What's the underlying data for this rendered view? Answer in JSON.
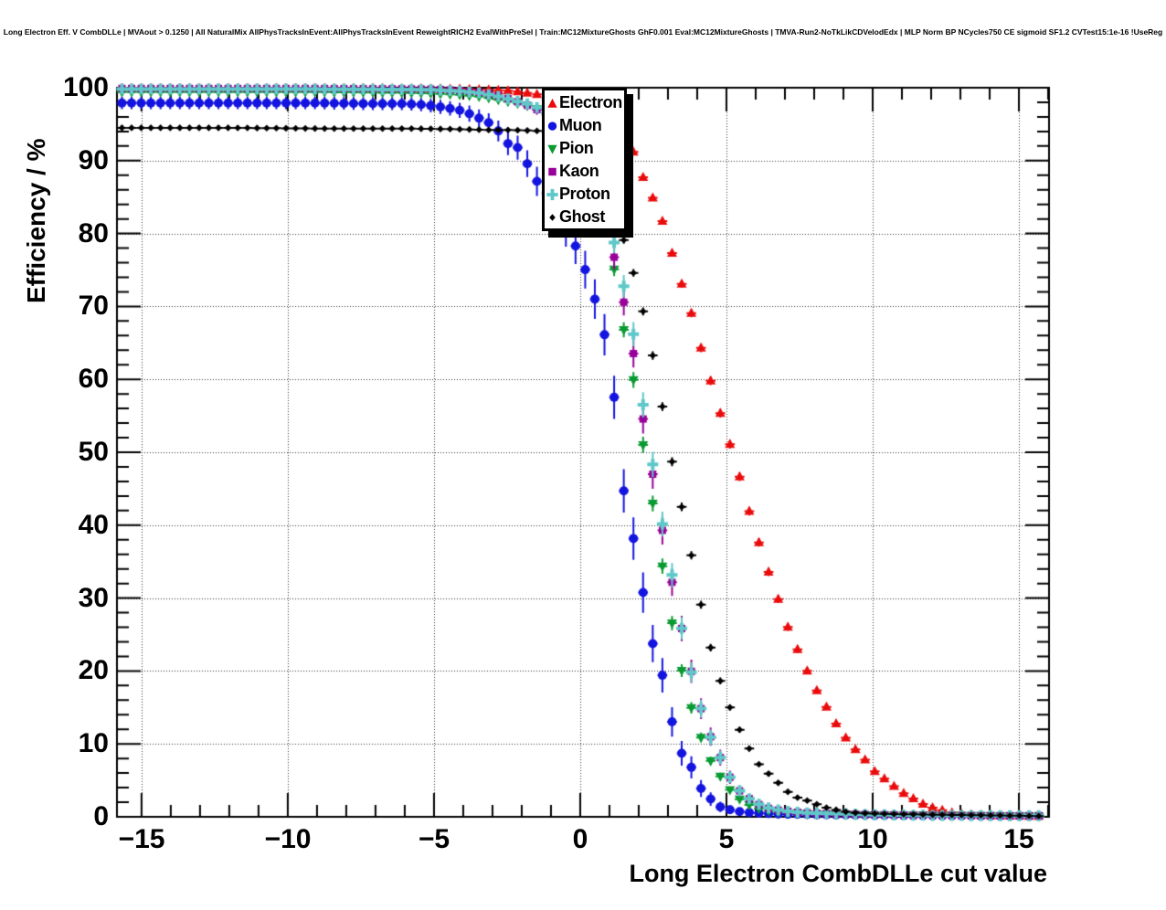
{
  "chart_data": {
    "type": "scatter",
    "title": "Long Electron Eff. V CombDLLe | MVAout > 0.1250 | All NaturalMix AllPhysTracksInEvent:AllPhysTracksInEvent ReweightRICH2 EvalWithPreSel | Train:MC12MixtureGhosts GhF0.001 Eval:MC12MixtureGhosts | TMVA-Run2-NoTkLikCDVelodEdx | MLP Norm BP NCycles750 CE sigmoid SF1.2 CVTest15:1e-16 !UseReg",
    "xlabel": "Long Electron CombDLLe cut value",
    "ylabel": "Efficiency / %",
    "xlim": [
      -15.84,
      16.03
    ],
    "ylim": [
      0,
      100
    ],
    "grid": "dotted-major-both-axes",
    "legend_position": "top-inside",
    "x_ticks": [
      -15,
      -10,
      -5,
      0,
      5,
      10,
      15
    ],
    "x_tick_labels": [
      "−15",
      "−10",
      "−5",
      "0",
      "5",
      "10",
      "15"
    ],
    "x_minor_step": 1,
    "y_ticks": [
      0,
      10,
      20,
      30,
      40,
      50,
      60,
      70,
      80,
      90,
      100
    ],
    "y_tick_labels": [
      "0",
      "10",
      "20",
      "30",
      "40",
      "50",
      "60",
      "70",
      "80",
      "90",
      "100"
    ],
    "y_minor_step": 2,
    "marker_bin_width": 0.33,
    "x_error_halfwidth": 0.166,
    "series": [
      {
        "name": "Electron",
        "marker": "triangle-up",
        "color": "#ea0c0c",
        "err_scale": 0.12,
        "points": [
          [
            -15.7,
            99.9
          ],
          [
            -12,
            99.9
          ],
          [
            -9,
            99.9
          ],
          [
            -7,
            99.9
          ],
          [
            -5,
            99.85
          ],
          [
            -4,
            99.8
          ],
          [
            -3,
            99.7
          ],
          [
            -2.5,
            99.6
          ],
          [
            -2,
            99.4
          ],
          [
            -1.5,
            99.1
          ],
          [
            -1,
            98.7
          ],
          [
            -0.5,
            98.1
          ],
          [
            0,
            97.3
          ],
          [
            0.5,
            96.3
          ],
          [
            1,
            95.0
          ],
          [
            1.35,
            93.9
          ],
          [
            1.68,
            92.7
          ],
          [
            2.13,
            87.9
          ],
          [
            2.46,
            85.1
          ],
          [
            2.78,
            82.1
          ],
          [
            3.08,
            78.1
          ],
          [
            3.4,
            73.9
          ],
          [
            3.75,
            69.8
          ],
          [
            4.05,
            65.4
          ],
          [
            4.38,
            60.9
          ],
          [
            4.7,
            56.5
          ],
          [
            5.05,
            52.0
          ],
          [
            5.38,
            47.7
          ],
          [
            5.68,
            43.2
          ],
          [
            6.0,
            39.1
          ],
          [
            6.3,
            35.1
          ],
          [
            6.63,
            31.5
          ],
          [
            6.93,
            28.0
          ],
          [
            7.19,
            25.0
          ],
          [
            7.57,
            21.8
          ],
          [
            7.87,
            19.0
          ],
          [
            8.2,
            16.5
          ],
          [
            8.51,
            14.5
          ],
          [
            8.82,
            12.3
          ],
          [
            9.14,
            10.5
          ],
          [
            9.48,
            8.9
          ],
          [
            9.82,
            7.5
          ],
          [
            10.1,
            6.1
          ],
          [
            10.45,
            5.1
          ],
          [
            10.76,
            4.1
          ],
          [
            11.07,
            3.2
          ],
          [
            11.4,
            2.5
          ],
          [
            11.7,
            1.8
          ],
          [
            12.0,
            1.3
          ],
          [
            12.3,
            1.0
          ],
          [
            12.66,
            0.6
          ],
          [
            12.97,
            0.4
          ],
          [
            13.3,
            0.3
          ],
          [
            13.9,
            0.2
          ],
          [
            14.5,
            0.15
          ],
          [
            15.2,
            0.1
          ],
          [
            15.8,
            0.1
          ]
        ]
      },
      {
        "name": "Muon",
        "marker": "circle",
        "color": "#1414e0",
        "err_scale": 0.6,
        "points": [
          [
            -15.7,
            97.9
          ],
          [
            -12,
            97.9
          ],
          [
            -9,
            97.9
          ],
          [
            -7,
            97.8
          ],
          [
            -6,
            97.8
          ],
          [
            -5.5,
            97.7
          ],
          [
            -5,
            97.5
          ],
          [
            -4.5,
            97.2
          ],
          [
            -4,
            96.8
          ],
          [
            -3.6,
            96.1
          ],
          [
            -3.3,
            95.5
          ],
          [
            -2.9,
            94.8
          ],
          [
            -2.6,
            92.6
          ],
          [
            -2.3,
            92.0
          ],
          [
            -2,
            91.6
          ],
          [
            -1.7,
            88.4
          ],
          [
            -1.4,
            86.7
          ],
          [
            -1.1,
            85.3
          ],
          [
            -0.8,
            83.5
          ],
          [
            -0.45,
            80.2
          ],
          [
            -0.1,
            77.9
          ],
          [
            0.26,
            74.1
          ],
          [
            0.57,
            70.1
          ],
          [
            0.89,
            65.2
          ],
          [
            1.2,
            56.4
          ],
          [
            1.51,
            43.9
          ],
          [
            1.84,
            37.8
          ],
          [
            2.17,
            30.3
          ],
          [
            2.46,
            24.0
          ],
          [
            2.77,
            20.2
          ],
          [
            3.12,
            13.3
          ],
          [
            3.45,
            8.8
          ],
          [
            3.75,
            7.3
          ],
          [
            4.04,
            4.3
          ],
          [
            4.35,
            2.9
          ],
          [
            4.68,
            1.5
          ],
          [
            5.0,
            1.1
          ],
          [
            5.3,
            0.8
          ],
          [
            5.7,
            0.6
          ],
          [
            6.1,
            0.5
          ],
          [
            6.6,
            0.4
          ],
          [
            7.2,
            0.35
          ],
          [
            8,
            0.3
          ],
          [
            9,
            0.25
          ],
          [
            10,
            0.2
          ],
          [
            12,
            0.15
          ],
          [
            14,
            0.1
          ],
          [
            15.8,
            0.1
          ]
        ]
      },
      {
        "name": "Pion",
        "marker": "triangle-down",
        "color": "#0a9a32",
        "err_scale": 0.22,
        "points": [
          [
            -15.7,
            99.4
          ],
          [
            -12,
            99.4
          ],
          [
            -9,
            99.4
          ],
          [
            -6,
            99.3
          ],
          [
            -5,
            99.2
          ],
          [
            -4,
            99.0
          ],
          [
            -3.3,
            98.7
          ],
          [
            -2.6,
            98.2
          ],
          [
            -2.1,
            97.8
          ],
          [
            -1.6,
            97.3
          ],
          [
            -1.2,
            96.6
          ],
          [
            -0.8,
            95.3
          ],
          [
            -0.4,
            93.5
          ],
          [
            0,
            91.0
          ],
          [
            0.3,
            88.3
          ],
          [
            0.6,
            84.8
          ],
          [
            0.87,
            80.2
          ],
          [
            1.2,
            74.4
          ],
          [
            1.47,
            67.2
          ],
          [
            1.84,
            59.5
          ],
          [
            2.13,
            51.5
          ],
          [
            2.46,
            43.5
          ],
          [
            2.76,
            35.6
          ],
          [
            3.07,
            28.0
          ],
          [
            3.39,
            21.4
          ],
          [
            3.7,
            16.2
          ],
          [
            4.04,
            11.9
          ],
          [
            4.35,
            8.4
          ],
          [
            4.68,
            6.2
          ],
          [
            5.0,
            4.3
          ],
          [
            5.3,
            2.8
          ],
          [
            5.6,
            2.0
          ],
          [
            5.9,
            1.4
          ],
          [
            6.3,
            0.9
          ],
          [
            6.6,
            0.7
          ],
          [
            7,
            0.55
          ],
          [
            8,
            0.35
          ],
          [
            9,
            0.3
          ],
          [
            10,
            0.25
          ],
          [
            12,
            0.2
          ],
          [
            14,
            0.15
          ],
          [
            15.8,
            0.1
          ]
        ]
      },
      {
        "name": "Kaon",
        "marker": "square",
        "color": "#990099",
        "err_scale": 0.4,
        "points": [
          [
            -15.7,
            99.9
          ],
          [
            -12,
            99.9
          ],
          [
            -9,
            99.9
          ],
          [
            -6,
            99.85
          ],
          [
            -5,
            99.8
          ],
          [
            -4,
            99.6
          ],
          [
            -3.3,
            99.3
          ],
          [
            -2.8,
            98.9
          ],
          [
            -2.3,
            98.3
          ],
          [
            -1.75,
            97.5
          ],
          [
            -1.43,
            96.9
          ],
          [
            -1,
            95.9
          ],
          [
            -0.6,
            94.4
          ],
          [
            -0.2,
            92.5
          ],
          [
            0.2,
            90.0
          ],
          [
            0.55,
            86.9
          ],
          [
            0.85,
            83.2
          ],
          [
            1.13,
            77.3
          ],
          [
            1.46,
            71.2
          ],
          [
            1.8,
            64.1
          ],
          [
            2.1,
            55.7
          ],
          [
            2.42,
            48.4
          ],
          [
            2.7,
            41.8
          ],
          [
            3.02,
            34.5
          ],
          [
            3.39,
            27.3
          ],
          [
            3.7,
            21.6
          ],
          [
            4.01,
            16.5
          ],
          [
            4.32,
            12.2
          ],
          [
            4.7,
            8.9
          ],
          [
            5.0,
            6.3
          ],
          [
            5.3,
            4.1
          ],
          [
            5.66,
            2.8
          ],
          [
            6,
            1.9
          ],
          [
            6.3,
            1.3
          ],
          [
            6.6,
            1.0
          ],
          [
            7,
            0.8
          ],
          [
            7.5,
            0.6
          ],
          [
            8,
            0.5
          ],
          [
            9,
            0.4
          ],
          [
            10,
            0.3
          ],
          [
            12,
            0.2
          ],
          [
            14,
            0.15
          ],
          [
            15.8,
            0.15
          ]
        ]
      },
      {
        "name": "Proton",
        "marker": "cross",
        "color": "#5fc8c8",
        "err_scale": 0.35,
        "points": [
          [
            -15.7,
            99.8
          ],
          [
            -12,
            99.8
          ],
          [
            -9,
            99.8
          ],
          [
            -6,
            99.75
          ],
          [
            -5,
            99.7
          ],
          [
            -4,
            99.5
          ],
          [
            -3.3,
            99.2
          ],
          [
            -2.8,
            98.8
          ],
          [
            -2.3,
            98.3
          ],
          [
            -1.75,
            97.7
          ],
          [
            -1.43,
            97.2
          ],
          [
            -1,
            96.2
          ],
          [
            -0.6,
            94.8
          ],
          [
            -0.2,
            93.0
          ],
          [
            0.2,
            90.6
          ],
          [
            0.55,
            87.5
          ],
          [
            0.85,
            83.8
          ],
          [
            1.2,
            78.1
          ],
          [
            1.51,
            72.4
          ],
          [
            1.84,
            65.8
          ],
          [
            2.13,
            57.0
          ],
          [
            2.43,
            49.6
          ],
          [
            2.76,
            41.2
          ],
          [
            3.09,
            34.3
          ],
          [
            3.42,
            26.8
          ],
          [
            3.75,
            20.6
          ],
          [
            4.06,
            15.8
          ],
          [
            4.35,
            11.8
          ],
          [
            4.7,
            8.9
          ],
          [
            5.0,
            6.3
          ],
          [
            5.3,
            4.1
          ],
          [
            5.66,
            2.8
          ],
          [
            6,
            1.9
          ],
          [
            6.3,
            1.4
          ],
          [
            6.6,
            1.05
          ],
          [
            7,
            0.8
          ],
          [
            7.5,
            0.6
          ],
          [
            8,
            0.5
          ],
          [
            9,
            0.4
          ],
          [
            10,
            0.3
          ],
          [
            12,
            0.2
          ],
          [
            14,
            0.15
          ],
          [
            15.8,
            0.15
          ]
        ]
      },
      {
        "name": "Ghost",
        "marker": "diamond",
        "color": "#000000",
        "err_scale": 0.12,
        "points": [
          [
            -15.7,
            94.5
          ],
          [
            -12,
            94.5
          ],
          [
            -9,
            94.4
          ],
          [
            -6,
            94.4
          ],
          [
            -4,
            94.3
          ],
          [
            -3,
            94.2
          ],
          [
            -2.3,
            94.2
          ],
          [
            -1.6,
            94.1
          ],
          [
            -1.2,
            94.0
          ],
          [
            -0.7,
            93.7
          ],
          [
            -0.3,
            93.2
          ],
          [
            0.1,
            92.3
          ],
          [
            0.5,
            90.8
          ],
          [
            0.9,
            88.0
          ],
          [
            1.2,
            84.5
          ],
          [
            1.49,
            79.1
          ],
          [
            1.82,
            74.6
          ],
          [
            2.17,
            69.0
          ],
          [
            2.5,
            62.9
          ],
          [
            2.78,
            57.0
          ],
          [
            3.07,
            50.0
          ],
          [
            3.42,
            43.5
          ],
          [
            3.75,
            36.9
          ],
          [
            4.06,
            30.5
          ],
          [
            4.32,
            25.3
          ],
          [
            4.66,
            20.2
          ],
          [
            4.97,
            16.5
          ],
          [
            5.34,
            12.8
          ],
          [
            5.66,
            10.3
          ],
          [
            5.99,
            7.7
          ],
          [
            6.3,
            6.4
          ],
          [
            6.64,
            5.2
          ],
          [
            6.95,
            3.9
          ],
          [
            7.3,
            2.8
          ],
          [
            7.6,
            2.4
          ],
          [
            7.95,
            2.0
          ],
          [
            8.26,
            1.4
          ],
          [
            8.6,
            1.1
          ],
          [
            8.9,
            0.8
          ],
          [
            9.2,
            0.6
          ],
          [
            9.6,
            0.5
          ],
          [
            10,
            0.45
          ],
          [
            11,
            0.35
          ],
          [
            12,
            0.3
          ],
          [
            13,
            0.25
          ],
          [
            14,
            0.2
          ],
          [
            15,
            0.15
          ],
          [
            15.8,
            0.1
          ]
        ]
      }
    ]
  },
  "colors": {
    "background": "#ffffff",
    "frame": "#000000",
    "grid": "#000000"
  }
}
